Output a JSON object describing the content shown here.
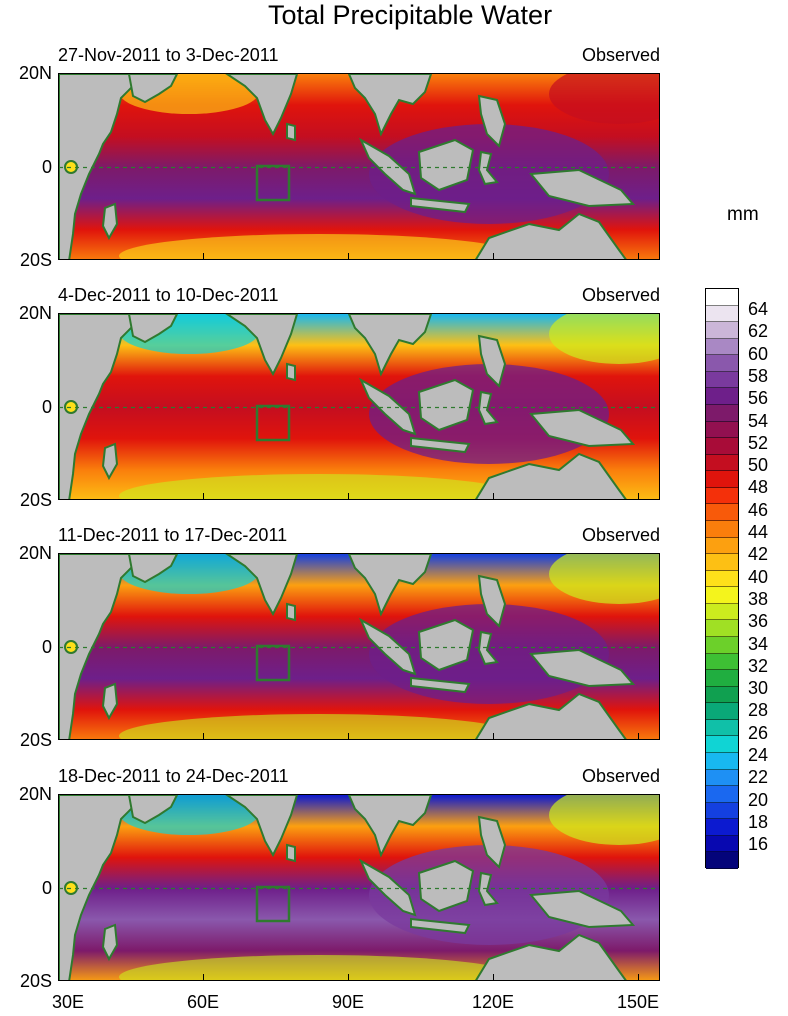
{
  "title": "Total Precipitable Water",
  "unit": "mm",
  "panels": [
    {
      "period": "27-Nov-2011 to 3-Dec-2011",
      "source": "Observed"
    },
    {
      "period": "4-Dec-2011 to 10-Dec-2011",
      "source": "Observed"
    },
    {
      "period": "11-Dec-2011 to 17-Dec-2011",
      "source": "Observed"
    },
    {
      "period": "18-Dec-2011 to 24-Dec-2011",
      "source": "Observed"
    }
  ],
  "lat_labels": [
    "20N",
    "0",
    "20S"
  ],
  "lon_labels": [
    "30E",
    "60E",
    "90E",
    "120E",
    "150E"
  ],
  "colorbar": {
    "labels": [
      "64",
      "62",
      "60",
      "58",
      "56",
      "54",
      "52",
      "50",
      "48",
      "46",
      "44",
      "42",
      "40",
      "38",
      "36",
      "34",
      "32",
      "30",
      "28",
      "26",
      "24",
      "22",
      "20",
      "18",
      "16"
    ],
    "colors": [
      "#ffffff",
      "#ece4f0",
      "#cbb6d8",
      "#a988c4",
      "#8a58ac",
      "#7a3a9e",
      "#6e1f8a",
      "#7d1a6a",
      "#921050",
      "#a80c38",
      "#c40e20",
      "#e0140c",
      "#f4300a",
      "#f85a0a",
      "#fa7e0c",
      "#fca010",
      "#fdc014",
      "#fee01a",
      "#f4f41c",
      "#ccec1e",
      "#a0e024",
      "#6cd02a",
      "#3ec034",
      "#20ae40",
      "#10a050",
      "#0aa878",
      "#10c0a8",
      "#10d4d4",
      "#18b8f0",
      "#1e90f4",
      "#1a68f0",
      "#1440e0",
      "#0c1ad0",
      "#0808b0",
      "#04047a"
    ]
  },
  "overlay": {
    "box": "green box",
    "equator": "dashed equator line"
  }
}
